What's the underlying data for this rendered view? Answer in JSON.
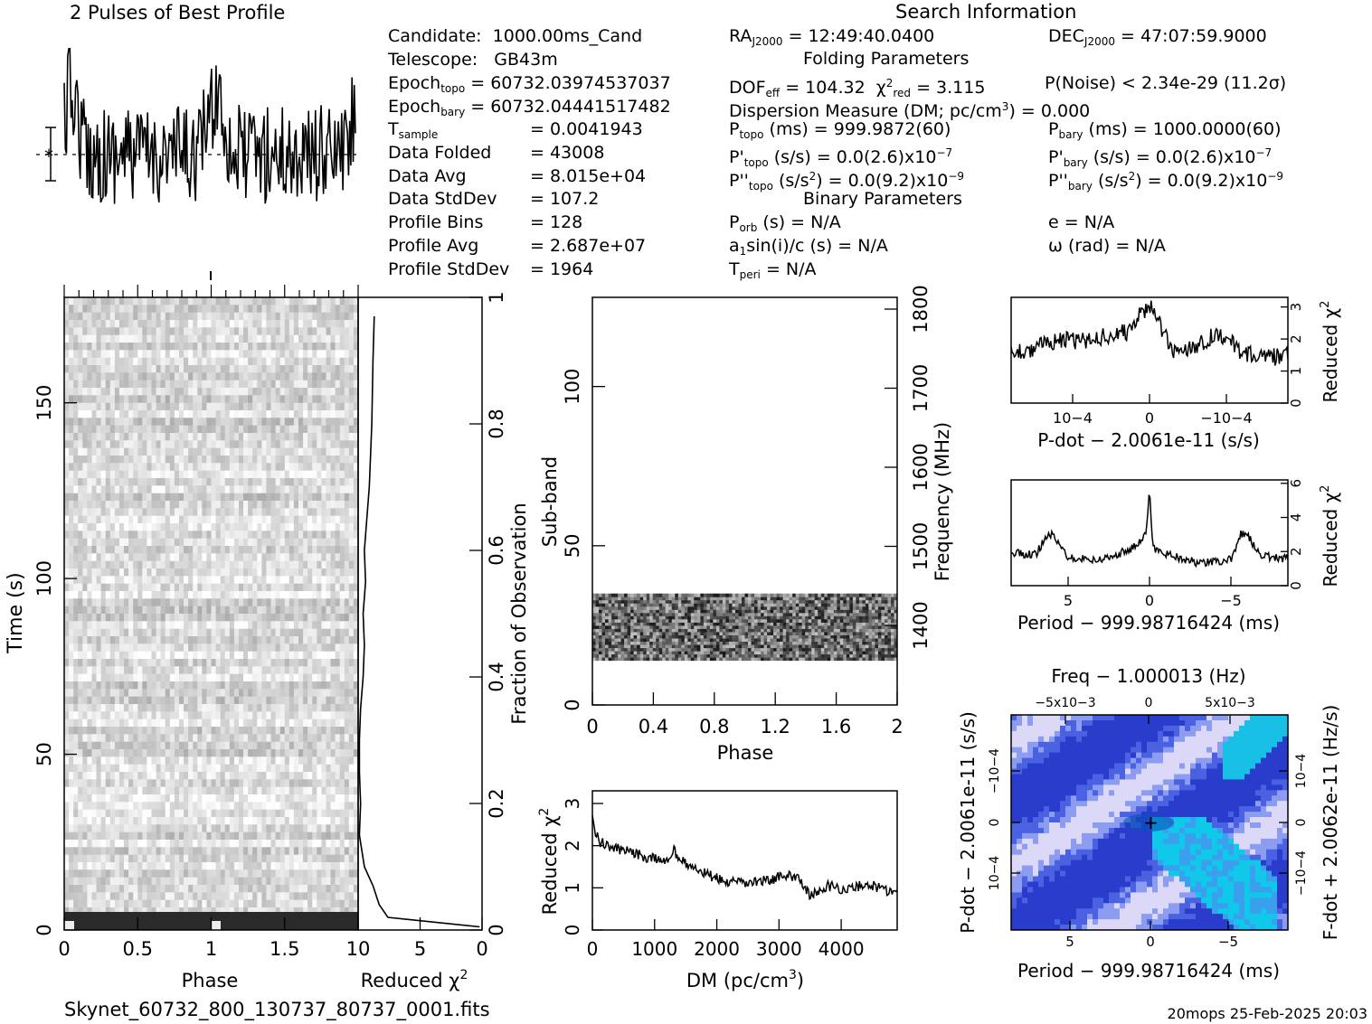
{
  "header": {
    "title": "2 Pulses of Best Profile",
    "search_title": "Search Information",
    "folding_title": "Folding Parameters",
    "binary_title": "Binary Parameters",
    "footer_file": "Skynet_60732_800_130737_80737_0001.fits",
    "footer_stamp": "20mops 25-Feb-2025 20:03"
  },
  "info_left": [
    {
      "label": "Candidate:",
      "value": "1000.00ms_Cand"
    },
    {
      "label": "Telescope:",
      "value": "GB43m"
    },
    {
      "label": "Epoch",
      "sub": "topo",
      "value": "= 60732.03974537037"
    },
    {
      "label": "Epoch",
      "sub": "bary",
      "value": "= 60732.04441517482"
    },
    {
      "label": "T",
      "sub": "sample",
      "value": "=  0.0041943"
    },
    {
      "label": "Data Folded",
      "value": "=  43008"
    },
    {
      "label": "Data Avg",
      "value": "=  8.015e+04"
    },
    {
      "label": "Data StdDev",
      "value": "=  107.2"
    },
    {
      "label": "Profile Bins",
      "value": "=  128"
    },
    {
      "label": "Profile Avg",
      "value": "=  2.687e+07"
    },
    {
      "label": "Profile StdDev",
      "value": "=  1964"
    }
  ],
  "info_mid": {
    "ra": "= 12:49:40.0400",
    "dec": "= 47:07:59.9000",
    "dof": "= 104.32",
    "chi2": "= 3.115",
    "pnoise": "P(Noise) < 2.34e-29  (11.2σ)",
    "dm": "Dispersion Measure (DM; pc/cm",
    "dm_value": ") = 0.000",
    "ptopo": "(ms) =  999.9872(60)",
    "pbary": "(ms) =  1000.0000(60)",
    "pdtopo": "(s/s) = 0.0(2.6)x10",
    "pdbary": "(s/s) = 0.0(2.6)x10",
    "pddtopo": "(s/s",
    "pddtopo_val": ") = 0.0(9.2)x10",
    "pddbary_val": ") = 0.0(9.2)x10",
    "porb": "(s) = N/A",
    "e": "e = N/A",
    "a1": "sin(i)/c (s) = N/A",
    "omega": "ω (rad) = N/A",
    "tperi": "= N/A"
  },
  "chart_data": [
    {
      "type": "line",
      "title": "2 Pulses of Best Profile",
      "xlabel": "",
      "ylabel": "",
      "x_range": [
        0,
        2
      ],
      "note": "noisy pulse profile, two pulses"
    },
    {
      "type": "heatmap",
      "name": "phase-time",
      "xlabel": "Phase",
      "ylabel": "Time (s)",
      "xlim": [
        0,
        2
      ],
      "ylim": [
        0,
        180
      ],
      "xticks": [
        "0",
        "0.5",
        "1",
        "1.5"
      ],
      "yticks": [
        "0",
        "50",
        "100",
        "150"
      ]
    },
    {
      "type": "line",
      "name": "reduced-chi2-vs-fraction",
      "xlabel": "Reduced χ2",
      "ylabel": "Fraction of Observation",
      "xlim": [
        10,
        0
      ],
      "ylim": [
        0,
        1
      ],
      "xticks": [
        "10",
        "5",
        "0"
      ],
      "yticks": [
        "0",
        "0.2",
        "0.4",
        "0.6",
        "0.8",
        "1"
      ],
      "x": [
        0.2,
        7.6,
        8.3,
        8.8,
        9.5,
        9.9,
        9.8,
        9.9,
        9.9,
        9.8,
        9.6,
        9.5,
        9.6,
        9.4,
        9.5,
        9.1,
        8.9,
        8.8,
        8.7
      ],
      "y": [
        0.005,
        0.02,
        0.04,
        0.07,
        0.1,
        0.15,
        0.2,
        0.25,
        0.3,
        0.35,
        0.4,
        0.45,
        0.5,
        0.55,
        0.6,
        0.7,
        0.8,
        0.9,
        0.97
      ]
    },
    {
      "type": "heatmap",
      "name": "phase-subband",
      "xlabel": "Phase",
      "ylabel": "Sub-band",
      "y2label": "Frequency (MHz)",
      "xlim": [
        0,
        2
      ],
      "ylim": [
        0,
        128
      ],
      "xticks": [
        "0",
        "0.4",
        "0.8",
        "1.2",
        "1.6",
        "2"
      ],
      "yticks": [
        "0",
        "50",
        "100"
      ],
      "y2ticks": [
        "1400",
        "1500",
        "1600",
        "1700",
        "1800"
      ],
      "band_subbands": [
        14,
        35
      ]
    },
    {
      "type": "line",
      "name": "reduced-chi2-vs-dm",
      "xlabel": "DM (pc/cm3)",
      "ylabel": "Reduced χ2",
      "xlim": [
        0,
        4900
      ],
      "ylim": [
        0,
        3.3
      ],
      "xticks": [
        "0",
        "1000",
        "2000",
        "3000",
        "4000"
      ],
      "yticks": [
        "0",
        "1",
        "2",
        "3"
      ],
      "x": [
        0,
        100,
        300,
        600,
        900,
        1200,
        1300,
        1500,
        1800,
        2100,
        2400,
        2700,
        3000,
        3300,
        3500,
        3800,
        4100,
        4400,
        4700,
        4900
      ],
      "y": [
        2.6,
        2.1,
        1.95,
        1.85,
        1.7,
        1.65,
        1.9,
        1.55,
        1.35,
        1.15,
        1.1,
        1.15,
        1.25,
        1.3,
        0.8,
        1.05,
        0.95,
        1.1,
        0.95,
        0.9
      ]
    },
    {
      "type": "line",
      "name": "reduced-chi2-vs-pdot",
      "xlabel": "P-dot − 2.0061e-11 (s/s)",
      "ylabel": "Reduced χ2",
      "xlim": [
        -0.00018,
        0.00018
      ],
      "ylim": [
        0,
        3.3
      ],
      "xticks": [
        "10−4",
        "0",
        "−10−4"
      ],
      "yticks": [
        "0",
        "1",
        "2",
        "3"
      ],
      "x": [
        -0.00018,
        -0.00015,
        -0.00012,
        -9e-05,
        -6e-05,
        -3e-05,
        0,
        3e-05,
        6e-05,
        9e-05,
        0.00012,
        0.00015,
        0.00018
      ],
      "y": [
        1.6,
        1.7,
        2.0,
        1.9,
        2.1,
        2.2,
        3.1,
        1.6,
        1.8,
        2.2,
        1.6,
        1.4,
        1.5
      ]
    },
    {
      "type": "line",
      "name": "reduced-chi2-vs-period",
      "xlabel": "Period − 999.98716424 (ms)",
      "ylabel": "Reduced χ2",
      "xlim": [
        8.5,
        -8.5
      ],
      "ylim": [
        0,
        6.2
      ],
      "xticks": [
        "5",
        "0",
        "−5"
      ],
      "yticks": [
        "0",
        "2",
        "4",
        "6"
      ],
      "x": [
        8.5,
        7,
        6.2,
        5,
        3,
        1,
        0.2,
        0,
        -0.2,
        -1,
        -3,
        -5,
        -5.6,
        -6,
        -7,
        -8.5
      ],
      "y": [
        1.9,
        1.8,
        3.2,
        1.7,
        1.5,
        2.2,
        3.0,
        5.7,
        2.2,
        1.9,
        1.3,
        1.5,
        3.1,
        2.9,
        1.7,
        1.6
      ]
    },
    {
      "type": "heatmap",
      "name": "period-pdot",
      "title": "Freq − 1.000013 (Hz)",
      "xlabel": "Period − 999.98716424 (ms)",
      "ylabel": "P-dot − 2.0061e-11 (s/s)",
      "y2label": "F-dot + 2.0062e-11 (Hz/s)",
      "xticks": [
        "5",
        "0",
        "−5"
      ],
      "x2ticks": [
        "−5x10−3",
        "0",
        "5x10−3"
      ],
      "yticks": [
        "10−4",
        "0",
        "−10−4"
      ],
      "y2ticks": [
        "−10−4",
        "0",
        "10−4"
      ],
      "colors": [
        "#2a3cd8",
        "#7fa0f0",
        "#e6e6ff",
        "#00d2f0"
      ]
    }
  ]
}
